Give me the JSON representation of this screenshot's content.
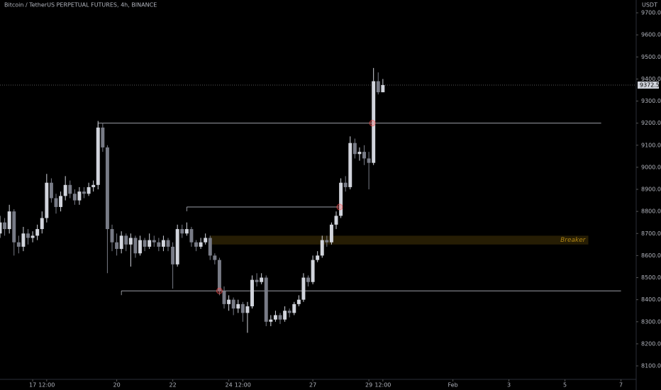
{
  "chart_data": {
    "type": "candlestick",
    "title": "Bitcoin / TetherUS PERPETUAL FUTURES, 4h, BINANCE",
    "y_label": "USDT",
    "up_color": "#d1d4dc",
    "down_color": "#787b86",
    "x": [
      -28,
      -24,
      -20,
      -16,
      -12,
      -8,
      -4,
      0,
      4,
      8,
      12,
      16,
      20,
      24,
      28,
      32,
      36,
      40,
      44,
      48,
      52,
      56,
      60,
      64,
      68,
      72,
      76,
      80,
      84,
      88,
      92,
      96,
      100,
      104,
      108,
      112,
      116,
      120,
      124,
      128,
      132,
      136,
      140,
      144,
      148,
      152,
      156,
      160,
      164,
      168,
      172,
      176,
      180,
      184,
      188,
      192,
      196,
      200,
      204,
      208,
      212,
      216,
      220,
      224,
      228,
      232,
      236,
      240,
      244,
      248,
      252,
      256,
      260,
      264,
      268,
      272,
      276,
      280,
      284,
      288,
      292,
      296,
      300
    ],
    "open": [
      8700,
      8750,
      8720,
      8800,
      8660,
      8640,
      8700,
      8680,
      8690,
      8720,
      8770,
      8930,
      8860,
      8820,
      8870,
      8920,
      8880,
      8850,
      8890,
      8880,
      8910,
      8920,
      9180,
      9090,
      8720,
      8660,
      8630,
      8690,
      8650,
      8680,
      8610,
      8670,
      8640,
      8670,
      8660,
      8640,
      8670,
      8640,
      8560,
      8720,
      8700,
      8720,
      8660,
      8640,
      8660,
      8680,
      8600,
      8580,
      8440,
      8380,
      8400,
      8360,
      8380,
      8340,
      8370,
      8490,
      8480,
      8500,
      8300,
      8310,
      8330,
      8310,
      8350,
      8340,
      8380,
      8400,
      8500,
      8480,
      8580,
      8600,
      8670,
      8660,
      8740,
      8780,
      8930,
      8910,
      9110,
      9060,
      9070,
      9040,
      9020,
      9390,
      9340
    ],
    "high": [
      8780,
      8770,
      8830,
      8810,
      8690,
      8730,
      8720,
      8710,
      8740,
      8800,
      8970,
      8950,
      8880,
      8890,
      8960,
      8940,
      8900,
      8910,
      8910,
      8930,
      8940,
      9210,
      9200,
      9100,
      8740,
      8700,
      8710,
      8700,
      8700,
      8690,
      8690,
      8680,
      8700,
      8690,
      8680,
      8690,
      8680,
      8660,
      8740,
      8740,
      8750,
      8730,
      8670,
      8680,
      8700,
      8690,
      8610,
      8590,
      8460,
      8420,
      8410,
      8400,
      8390,
      8390,
      8510,
      8520,
      8520,
      8510,
      8330,
      8350,
      8340,
      8370,
      8360,
      8390,
      8420,
      8520,
      8510,
      8600,
      8620,
      8690,
      8690,
      8750,
      8800,
      8950,
      8960,
      9140,
      9130,
      9090,
      9100,
      9070,
      9450,
      9430,
      9400
    ],
    "low": [
      8680,
      8690,
      8700,
      8600,
      8610,
      8620,
      8650,
      8660,
      8670,
      8700,
      8750,
      8840,
      8790,
      8800,
      8850,
      8860,
      8830,
      8830,
      8860,
      8870,
      8890,
      8900,
      9070,
      8520,
      8620,
      8600,
      8610,
      8620,
      8550,
      8590,
      8600,
      8620,
      8630,
      8640,
      8620,
      8620,
      8620,
      8450,
      8550,
      8680,
      8690,
      8640,
      8620,
      8630,
      8650,
      8580,
      8560,
      8420,
      8360,
      8350,
      8330,
      8340,
      8300,
      8250,
      8360,
      8460,
      8470,
      8280,
      8280,
      8300,
      8290,
      8300,
      8320,
      8330,
      8370,
      8390,
      8460,
      8470,
      8570,
      8590,
      8640,
      8650,
      8720,
      8770,
      8890,
      8900,
      9040,
      9030,
      9010,
      8900,
      9010,
      9330,
      9340
    ],
    "close": [
      8750,
      8720,
      8800,
      8660,
      8640,
      8700,
      8680,
      8690,
      8720,
      8770,
      8930,
      8860,
      8820,
      8870,
      8920,
      8880,
      8850,
      8890,
      8880,
      8910,
      8920,
      9180,
      9090,
      8720,
      8660,
      8630,
      8690,
      8650,
      8680,
      8610,
      8670,
      8640,
      8670,
      8660,
      8640,
      8670,
      8640,
      8560,
      8720,
      8700,
      8720,
      8660,
      8640,
      8660,
      8680,
      8600,
      8580,
      8440,
      8380,
      8400,
      8360,
      8380,
      8340,
      8370,
      8490,
      8480,
      8500,
      8300,
      8310,
      8330,
      8310,
      8350,
      8340,
      8380,
      8400,
      8500,
      8480,
      8580,
      8600,
      8670,
      8660,
      8740,
      8780,
      8930,
      8910,
      9110,
      9060,
      9070,
      9040,
      9020,
      9390,
      9340,
      9372.5
    ],
    "xlim": [
      -28,
      517
    ],
    "xticks": [
      {
        "value": 0,
        "label": "17"
      },
      {
        "value": 12,
        "label": "12:00"
      },
      {
        "value": 72,
        "label": "20"
      },
      {
        "value": 120,
        "label": "22"
      },
      {
        "value": 168,
        "label": "24"
      },
      {
        "value": 180,
        "label": "12:00"
      },
      {
        "value": 240,
        "label": "27"
      },
      {
        "value": 288,
        "label": "29"
      },
      {
        "value": 300,
        "label": "12:00"
      },
      {
        "value": 360,
        "label": "Feb"
      },
      {
        "value": 408,
        "label": "3"
      },
      {
        "value": 456,
        "label": "5"
      },
      {
        "value": 504,
        "label": "7"
      }
    ],
    "ylim": [
      8039,
      9758
    ],
    "yticks": [
      {
        "value": 8100,
        "label": "8100.0"
      },
      {
        "value": 8200,
        "label": "8200.0"
      },
      {
        "value": 8300,
        "label": "8300.0"
      },
      {
        "value": 8400,
        "label": "8400.0"
      },
      {
        "value": 8500,
        "label": "8500.0"
      },
      {
        "value": 8600,
        "label": "8600.0"
      },
      {
        "value": 8700,
        "label": "8700.0"
      },
      {
        "value": 8800,
        "label": "8800.0"
      },
      {
        "value": 8900,
        "label": "8900.0"
      },
      {
        "value": 9000,
        "label": "9000.0"
      },
      {
        "value": 9100,
        "label": "9100.0"
      },
      {
        "value": 9200,
        "label": "9200.0"
      },
      {
        "value": 9300,
        "label": "9300.0"
      },
      {
        "value": 9400,
        "label": "9400.0"
      },
      {
        "value": 9500,
        "label": "9500.0"
      },
      {
        "value": 9600,
        "label": "9600.0"
      },
      {
        "value": 9700,
        "label": "9700.0"
      }
    ],
    "last_price": 9372.5,
    "levels": [
      {
        "value": 9200,
        "x": [
          56,
          487
        ]
      },
      {
        "value": 8820,
        "x": [
          132,
          262
        ]
      },
      {
        "value": 8440,
        "x": [
          76,
          504
        ]
      }
    ],
    "level_color": "#b2b5be",
    "zones": [
      {
        "label": "Breaker",
        "range": [
          8650,
          8690
        ],
        "x": [
          152,
          476
        ],
        "color": "#d4a017"
      }
    ],
    "markers": [
      {
        "x": 291,
        "y": 9200
      },
      {
        "x": 263,
        "y": 8820
      },
      {
        "x": 160,
        "y": 8440
      }
    ],
    "marker_color": "#ff4d4d"
  }
}
